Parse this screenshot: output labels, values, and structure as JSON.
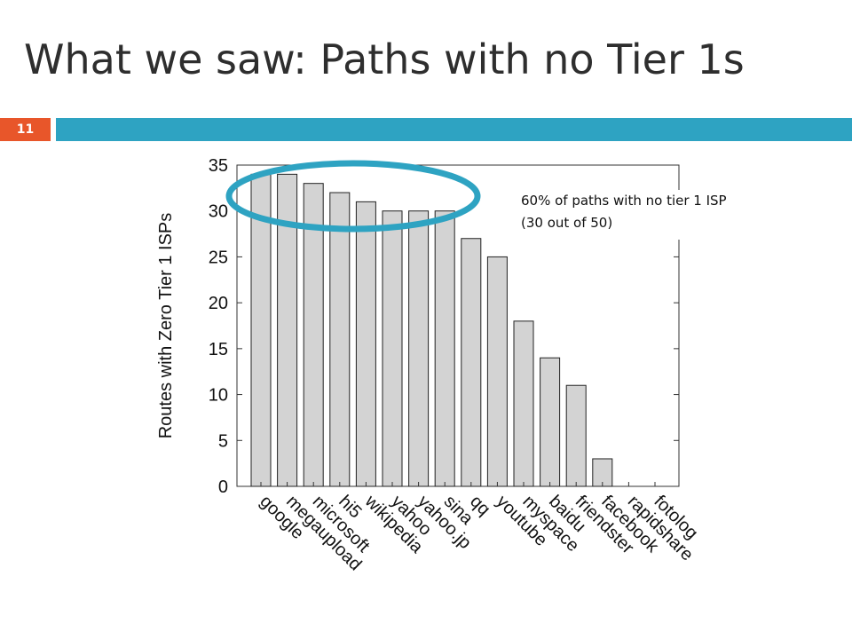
{
  "slide": {
    "title": "What we saw: Paths with no Tier 1s",
    "number": "11",
    "colors": {
      "number_bg": "#e8562a",
      "accent_bar": "#2ea3c2",
      "highlight_ellipse": "#2ea3c2"
    }
  },
  "annotation": {
    "line1": "60% of paths with no tier 1 ISP",
    "line2": "(30 out of 50)"
  },
  "chart_data": {
    "type": "bar",
    "ylabel": "Routes with Zero Tier 1 ISPs",
    "xlabel": "",
    "ylim": [
      0,
      35
    ],
    "yticks": [
      0,
      5,
      10,
      15,
      20,
      25,
      30,
      35
    ],
    "categories": [
      "google",
      "megaupload",
      "microsoft",
      "hi5",
      "wikipedia",
      "yahoo",
      "yahoo.jp",
      "sina",
      "qq",
      "youtube",
      "myspace",
      "baidu",
      "friendster",
      "facebook",
      "rapidshare",
      "fotolog"
    ],
    "values": [
      34,
      34,
      33,
      32,
      31,
      30,
      30,
      30,
      27,
      25,
      18,
      14,
      11,
      3,
      0,
      0
    ],
    "bar_color": "#d3d3d3",
    "grid": false,
    "highlight": "ellipse around the top bars (google through yahoo.jp)"
  }
}
